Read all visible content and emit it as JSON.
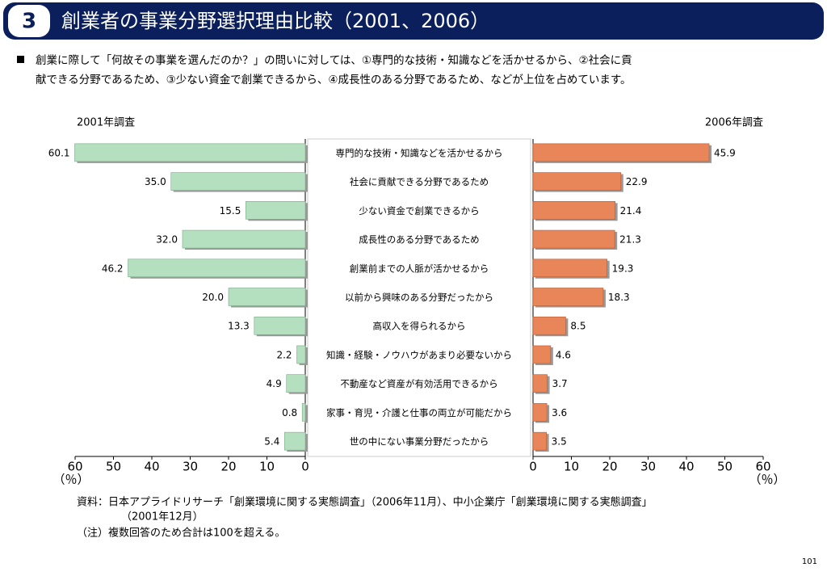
{
  "header": {
    "number": "3",
    "title": "創業者の事業分野選択理由比較（2001、2006）"
  },
  "bullet": [
    "創業に際して「何故その事業を選んだのか？」の問いに対しては、①専門的な技術・知識などを活かせるから、②社会に貢",
    "献できる分野であるため、③少ない資金で創業できるから、④成長性のある分野であるため、などが上位を占めています。"
  ],
  "chart_data": {
    "type": "butterfly",
    "categories": [
      "専門的な技術・知識などを活かせるから",
      "社会に貢献できる分野であるため",
      "少ない資金で創業できるから",
      "成長性のある分野であるため",
      "創業前までの人脈が活かせるから",
      "以前から興味のある分野だったから",
      "高収入を得られるから",
      "知識・経験・ノウハウがあまり必要ないから",
      "不動産など資産が有効活用できるから",
      "家事・育児・介護と仕事の両立が可能だから",
      "世の中にない事業分野だったから"
    ],
    "series": [
      {
        "name": "2001年調査",
        "color": "#b5e0c0",
        "values": [
          60.1,
          35.0,
          15.5,
          32.0,
          46.2,
          20.0,
          13.3,
          2.2,
          4.9,
          0.8,
          5.4
        ],
        "value_labels": [
          "60.1",
          "35.0",
          "15.5",
          "32.0",
          "46.2",
          "20.0",
          "13.3",
          "2.2",
          "4.9",
          "0.8",
          "5.4"
        ],
        "xlim": [
          0,
          60
        ],
        "xticks": [
          0,
          10,
          20,
          30,
          40,
          50,
          60
        ],
        "x_label": "（％）"
      },
      {
        "name": "2006年調査",
        "color": "#e8865a",
        "values": [
          45.9,
          22.9,
          21.4,
          21.3,
          19.3,
          18.3,
          8.5,
          4.6,
          3.7,
          3.6,
          3.5
        ],
        "xlim": [
          0,
          60
        ],
        "xticks": [
          0,
          10,
          20,
          30,
          40,
          50,
          60
        ],
        "x_label": "（％）"
      }
    ]
  },
  "notes": [
    "資料：日本アプライドリサーチ「創業環境に関する実態調査」（2006年11月）、中小企業庁「創業環境に関する実態調査」",
    "（2001年12月）",
    "（注）複数回答のため合計は100を超える。"
  ],
  "page_number": "101"
}
